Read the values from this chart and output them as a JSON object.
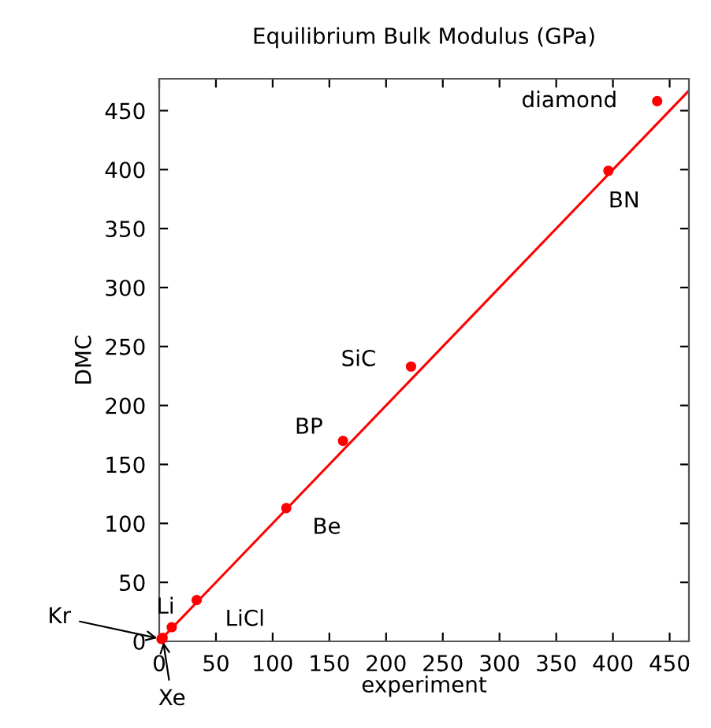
{
  "chart_data": {
    "type": "scatter",
    "title": "Equilibrium Bulk Modulus (GPa)",
    "xlabel": "experiment",
    "ylabel": "DMC",
    "x": [
      2,
      3,
      11,
      33,
      112,
      162,
      222,
      396,
      439
    ],
    "series": [
      {
        "color": "#ff0000",
        "values": [
          2,
          3,
          12,
          35,
          113,
          170,
          233,
          399,
          458
        ],
        "marker": "circle"
      },
      {
        "type": "line",
        "color": "#ff0000",
        "x": [
          0,
          467
        ],
        "values": [
          0,
          467
        ],
        "marker": "none",
        "line_style": "solid"
      }
    ],
    "annotations": [
      {
        "text": "Kr",
        "x": 2,
        "y": 2
      },
      {
        "text": "Xe",
        "x": 3,
        "y": 3
      },
      {
        "text": "Li",
        "x": 11,
        "y": 12
      },
      {
        "text": "LiCl",
        "x": 33,
        "y": 35
      },
      {
        "text": "Be",
        "x": 112,
        "y": 113
      },
      {
        "text": "BP",
        "x": 162,
        "y": 170
      },
      {
        "text": "SiC",
        "x": 222,
        "y": 233
      },
      {
        "text": "BN",
        "x": 396,
        "y": 399
      },
      {
        "text": "diamond",
        "x": 439,
        "y": 458
      }
    ],
    "xlim": [
      0,
      467
    ],
    "ylim": [
      0,
      477
    ],
    "xticks": [
      0,
      50,
      100,
      150,
      200,
      250,
      300,
      350,
      400,
      450
    ],
    "yticks": [
      0,
      50,
      100,
      150,
      200,
      250,
      300,
      350,
      400,
      450
    ],
    "grid": false,
    "legend": false
  }
}
